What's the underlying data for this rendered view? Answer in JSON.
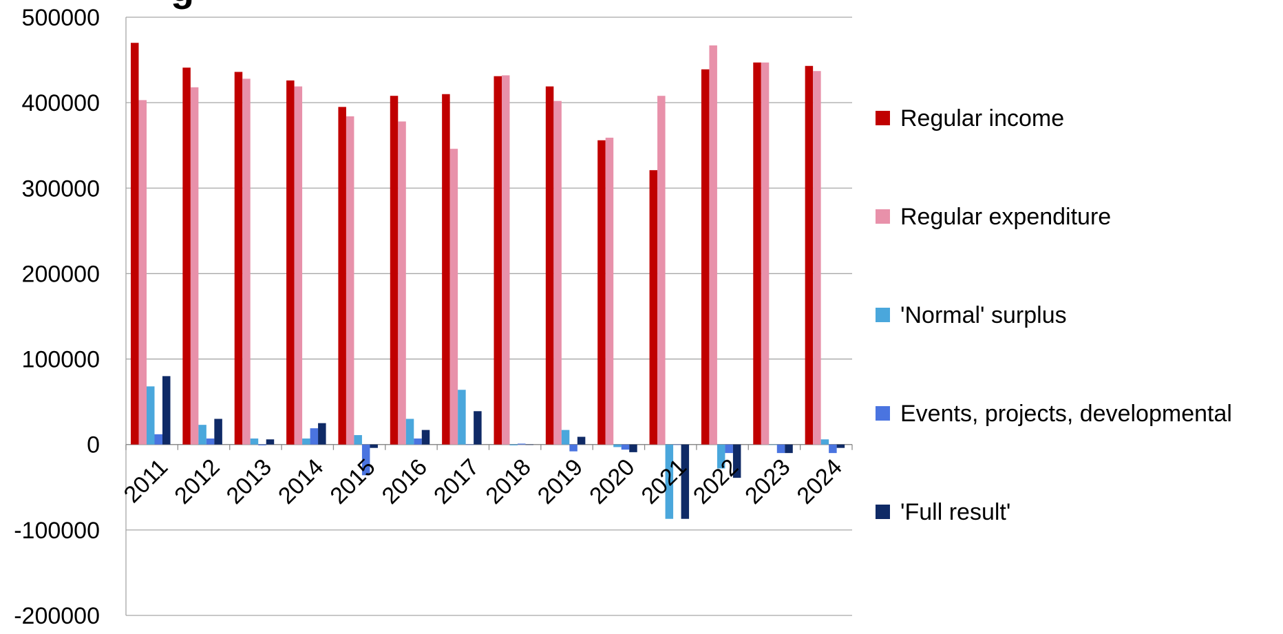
{
  "chart_data": {
    "type": "bar",
    "title_fragment": "g",
    "categories": [
      "2011",
      "2012",
      "2013",
      "2014",
      "2015",
      "2016",
      "2017",
      "2018",
      "2019",
      "2020",
      "2021",
      "2022",
      "2023",
      "2024"
    ],
    "series": [
      {
        "name": "Regular income",
        "color": "#c00000",
        "values": [
          470000,
          441000,
          436000,
          426000,
          395000,
          408000,
          410000,
          431000,
          419000,
          356000,
          321000,
          439000,
          447000,
          443000
        ]
      },
      {
        "name": "Regular expenditure",
        "color": "#e891aa",
        "values": [
          403000,
          418000,
          428000,
          419000,
          384000,
          378000,
          346000,
          432000,
          402000,
          359000,
          408000,
          467000,
          447000,
          437000
        ]
      },
      {
        "name": "'Normal' surplus",
        "color": "#4aa7dc",
        "values": [
          68000,
          23000,
          7000,
          7000,
          11000,
          30000,
          64000,
          -1000,
          17000,
          -3000,
          -87000,
          -28000,
          0,
          6000
        ]
      },
      {
        "name": "Events, projects, developmental",
        "color": "#4a74e0",
        "values": [
          12000,
          7000,
          -1000,
          19000,
          -36000,
          7000,
          0,
          1000,
          -8000,
          -6000,
          0,
          -10000,
          -10000,
          -10000
        ]
      },
      {
        "name": "'Full result'",
        "color": "#0f2a66",
        "values": [
          80000,
          30000,
          6000,
          25000,
          -4000,
          17000,
          39000,
          0,
          9000,
          -9000,
          -87000,
          -39000,
          -10000,
          -4000
        ]
      }
    ],
    "y_ticks": [
      "500000",
      "400000",
      "300000",
      "200000",
      "100000",
      "0",
      "-100000",
      "-200000"
    ],
    "ylim": [
      -200000,
      500000
    ],
    "grid": true,
    "legend_position": "right"
  }
}
